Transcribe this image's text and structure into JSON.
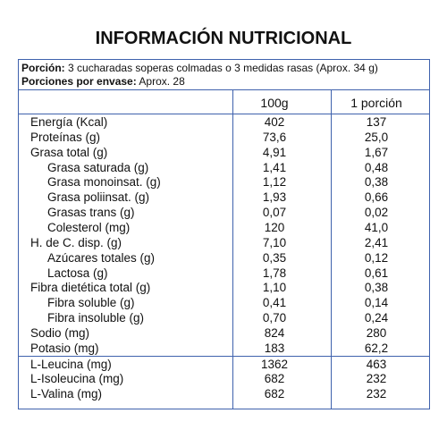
{
  "header": {
    "title": "INFORMACIÓN NUTRICIONAL"
  },
  "serving": {
    "label": "Porción:",
    "text": "3 cucharadas soperas colmadas o 3 medidas rasas (Aprox. 34 g)"
  },
  "servings": {
    "label": "Porciones por envase:",
    "text": "Aprox. 28"
  },
  "table": {
    "columns": [
      "100g",
      "1 porción"
    ],
    "rows": [
      [
        "Energía (Kcal)",
        "402",
        "137"
      ],
      [
        "Proteínas (g)",
        "73,6",
        "25,0"
      ],
      [
        "Grasa total (g)",
        "4,91",
        "1,67"
      ],
      [
        "Grasa saturada (g)",
        "1,41",
        "0,48"
      ],
      [
        "Grasa monoinsat. (g)",
        "1,12",
        "0,38"
      ],
      [
        "Grasa poliinsat. (g)",
        "1,93",
        "0,66"
      ],
      [
        "Grasas trans (g)",
        "0,07",
        "0,02"
      ],
      [
        "Colesterol (mg)",
        "120",
        "41,0"
      ],
      [
        "H. de C. disp. (g)",
        "7,10",
        "2,41"
      ],
      [
        "Azúcares totales (g)",
        "0,35",
        "0,12"
      ],
      [
        "Lactosa (g)",
        "1,78",
        "0,61"
      ],
      [
        "Fibra dietética total (g)",
        "1,10",
        "0,38"
      ],
      [
        "Fibra soluble (g)",
        "0,41",
        "0,14"
      ],
      [
        "Fibra insoluble (g)",
        "0,70",
        "0,24"
      ],
      [
        "Sodio (mg)",
        "824",
        "280"
      ],
      [
        "Potasio (mg)",
        "183",
        "62,2"
      ],
      [
        "L-Leucina (mg)",
        "1362",
        "463"
      ],
      [
        "L-Isoleucina (mg)",
        "682",
        "232"
      ],
      [
        "L-Valina (mg)",
        "682",
        "232"
      ]
    ]
  }
}
